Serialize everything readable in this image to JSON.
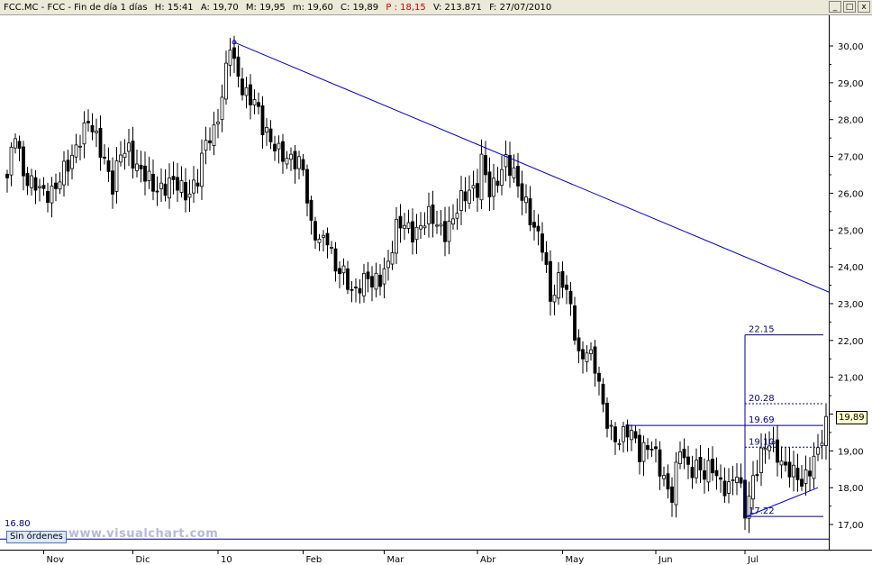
{
  "header": {
    "symbol": "FCC.MC - FCC - Fin de día 1 días",
    "high": "H: 15:41",
    "open": "A: 19,70",
    "max": "M: 19,95",
    "min": "m: 19,60",
    "close": "C: 19,89",
    "p": "P : 18,15",
    "volume": "V: 213.871",
    "date": "F: 27/07/2010"
  },
  "window_buttons": [
    "_",
    "□",
    "x"
  ],
  "status_badge": "Sin órdenes",
  "watermark": "www.visualchart.com",
  "low_label": "16.80",
  "last_price_label": "19,89",
  "chart_data": {
    "type": "candlestick",
    "title": "",
    "xlabel": "",
    "ylabel": "",
    "ylim": [
      16.65,
      30.45
    ],
    "y_ticks": [
      "17,00",
      "18,00",
      "19,00",
      "20,00",
      "21,00",
      "22,00",
      "23,00",
      "24,00",
      "25,00",
      "26,00",
      "27,00",
      "28,00",
      "29,00",
      "30,00"
    ],
    "y_tick_values": [
      17,
      18,
      19,
      20,
      21,
      22,
      23,
      24,
      25,
      26,
      27,
      28,
      29,
      30
    ],
    "month_labels": [
      "Nov",
      "Dic",
      "10",
      "Feb",
      "Mar",
      "Abr",
      "May",
      "Jun",
      "Jul"
    ],
    "month_bar_index": [
      9,
      31,
      52,
      73,
      93,
      116,
      137,
      160,
      182
    ],
    "n_bars": 203,
    "grid": false,
    "last_price": 19.89,
    "keypoints": [
      [
        0,
        26.3
      ],
      [
        2,
        27.7
      ],
      [
        4,
        26.6
      ],
      [
        6,
        26.2
      ],
      [
        9,
        26.0
      ],
      [
        12,
        26.2
      ],
      [
        15,
        26.7
      ],
      [
        18,
        27.6
      ],
      [
        20,
        27.9
      ],
      [
        22,
        27.4
      ],
      [
        24,
        27.0
      ],
      [
        26,
        26.2
      ],
      [
        28,
        27.0
      ],
      [
        30,
        27.2
      ],
      [
        33,
        26.6
      ],
      [
        36,
        26.1
      ],
      [
        40,
        26.3
      ],
      [
        44,
        26.0
      ],
      [
        47,
        26.4
      ],
      [
        49,
        27.3
      ],
      [
        51,
        27.7
      ],
      [
        53,
        28.7
      ],
      [
        55,
        30.0
      ],
      [
        56,
        29.4
      ],
      [
        58,
        28.9
      ],
      [
        61,
        28.5
      ],
      [
        63,
        27.7
      ],
      [
        66,
        27.4
      ],
      [
        69,
        26.8
      ],
      [
        72,
        26.9
      ],
      [
        73,
        26.8
      ],
      [
        75,
        25.0
      ],
      [
        77,
        24.6
      ],
      [
        79,
        24.9
      ],
      [
        81,
        24.0
      ],
      [
        83,
        23.7
      ],
      [
        85,
        23.3
      ],
      [
        87,
        23.6
      ],
      [
        89,
        23.7
      ],
      [
        90,
        23.4
      ],
      [
        92,
        23.7
      ],
      [
        94,
        24.2
      ],
      [
        96,
        25.0
      ],
      [
        98,
        25.1
      ],
      [
        100,
        25.0
      ],
      [
        102,
        25.1
      ],
      [
        104,
        25.3
      ],
      [
        106,
        25.2
      ],
      [
        108,
        25.0
      ],
      [
        110,
        25.2
      ],
      [
        112,
        25.8
      ],
      [
        114,
        26.2
      ],
      [
        116,
        26.1
      ],
      [
        117,
        26.8
      ],
      [
        119,
        26.0
      ],
      [
        121,
        26.5
      ],
      [
        123,
        26.9
      ],
      [
        124,
        26.6
      ],
      [
        126,
        26.2
      ],
      [
        128,
        25.8
      ],
      [
        130,
        25.0
      ],
      [
        132,
        24.5
      ],
      [
        134,
        23.2
      ],
      [
        136,
        23.7
      ],
      [
        137,
        23.6
      ],
      [
        139,
        22.8
      ],
      [
        141,
        21.6
      ],
      [
        143,
        21.8
      ],
      [
        145,
        21.2
      ],
      [
        147,
        20.2
      ],
      [
        149,
        19.6
      ],
      [
        151,
        19.2
      ],
      [
        153,
        19.5
      ],
      [
        155,
        19.4
      ],
      [
        156,
        19.0
      ],
      [
        158,
        19.1
      ],
      [
        160,
        18.8
      ],
      [
        162,
        18.3
      ],
      [
        164,
        17.8
      ],
      [
        166,
        19.0
      ],
      [
        168,
        18.5
      ],
      [
        170,
        18.7
      ],
      [
        172,
        18.3
      ],
      [
        174,
        18.5
      ],
      [
        176,
        18.2
      ],
      [
        178,
        18.0
      ],
      [
        180,
        18.3
      ],
      [
        182,
        17.4
      ],
      [
        184,
        18.3
      ],
      [
        186,
        18.8
      ],
      [
        188,
        19.2
      ],
      [
        190,
        19.0
      ],
      [
        192,
        18.5
      ],
      [
        194,
        18.3
      ],
      [
        196,
        18.2
      ],
      [
        198,
        18.6
      ],
      [
        200,
        18.9
      ],
      [
        202,
        19.7
      ]
    ],
    "trendlines": [
      {
        "from_bar": 56,
        "from_value": 30.1,
        "to_bar": 203,
        "to_value": 23.3
      },
      {
        "from_bar": 182,
        "from_value": 17.2,
        "to_bar": 200,
        "to_value": 18.0
      }
    ],
    "levels": [
      {
        "label": "22.15",
        "value": 22.15
      },
      {
        "label": "20.28",
        "value": 20.28
      },
      {
        "label": "19.69",
        "value": 19.69
      },
      {
        "label": "19.10",
        "value": 19.1
      },
      {
        "label": "17.22",
        "value": 17.22
      }
    ],
    "level_anchor_bar": 182,
    "support_level": 16.8,
    "colors": {
      "candle": "#000000",
      "trendline": "#0000cc",
      "level": "#000080"
    }
  }
}
